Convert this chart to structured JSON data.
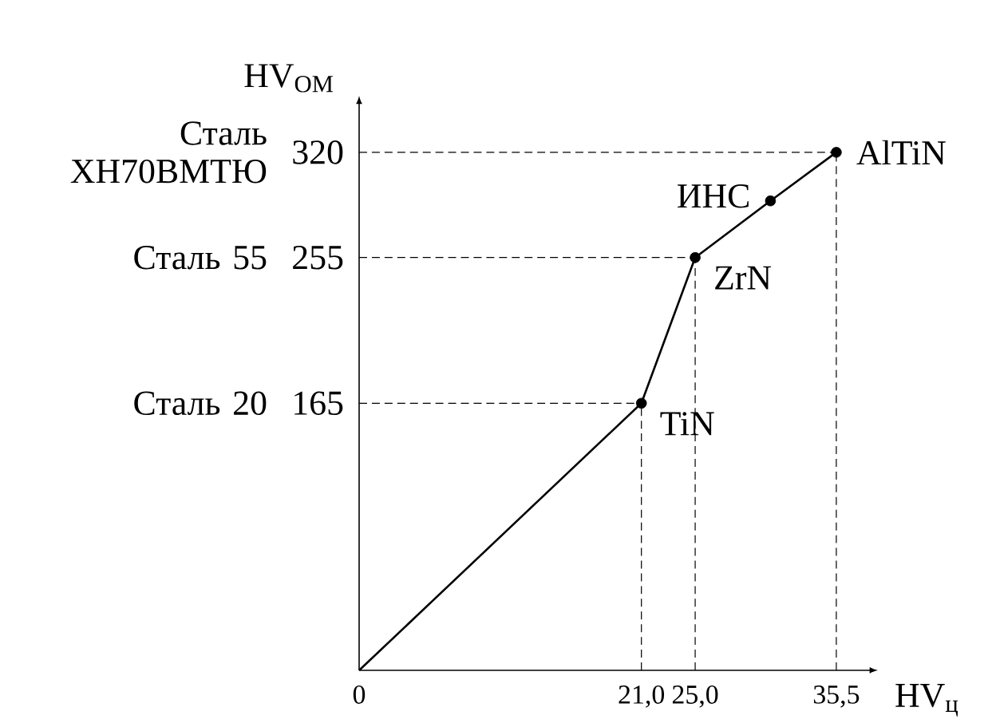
{
  "chart_data": {
    "type": "line",
    "xlabel": "HV$_{ц}$",
    "ylabel": "HV$_{ОМ}$",
    "xlim": [
      0,
      38
    ],
    "ylim": [
      0,
      350
    ],
    "xticks": [
      {
        "value": 0,
        "label": "0"
      },
      {
        "value": 21.0,
        "label": "21,0"
      },
      {
        "value": 25.0,
        "label": "25,0"
      },
      {
        "value": 35.5,
        "label": "35,5"
      }
    ],
    "yticks": [
      165,
      255,
      320
    ],
    "series": [
      {
        "color": "#000000",
        "marker": "none",
        "x": [
          0,
          21.0,
          25.0,
          30.6,
          35.5
        ],
        "values": [
          0,
          165,
          255,
          290,
          320
        ]
      },
      {
        "type": "scatter",
        "color": "#000000",
        "marker": "circle",
        "x": [
          21.0,
          25.0,
          30.6,
          35.5
        ],
        "values": [
          165,
          255,
          290,
          320
        ]
      }
    ],
    "ref_lines": [
      {
        "axis": "y",
        "value": 165,
        "label": "Сталь 20",
        "line_style": "dashed"
      },
      {
        "axis": "y",
        "value": 255,
        "label": "Сталь 55",
        "line_style": "dashed"
      },
      {
        "axis": "y",
        "value": 320,
        "label": "Сталь ХН70ВМТЮ",
        "line_style": "dashed"
      },
      {
        "axis": "x",
        "value": 21.0,
        "line_style": "dashed"
      },
      {
        "axis": "x",
        "value": 25.0,
        "line_style": "dashed"
      },
      {
        "axis": "x",
        "value": 35.5,
        "line_style": "dashed"
      }
    ],
    "annotations": [
      {
        "text": "TiN",
        "x": 21.0,
        "y": 165
      },
      {
        "text": "ZrN",
        "x": 25.0,
        "y": 255
      },
      {
        "text": "ИНС",
        "x": 30.6,
        "y": 290
      },
      {
        "text": "AlTiN",
        "x": 35.5,
        "y": 320
      }
    ]
  }
}
